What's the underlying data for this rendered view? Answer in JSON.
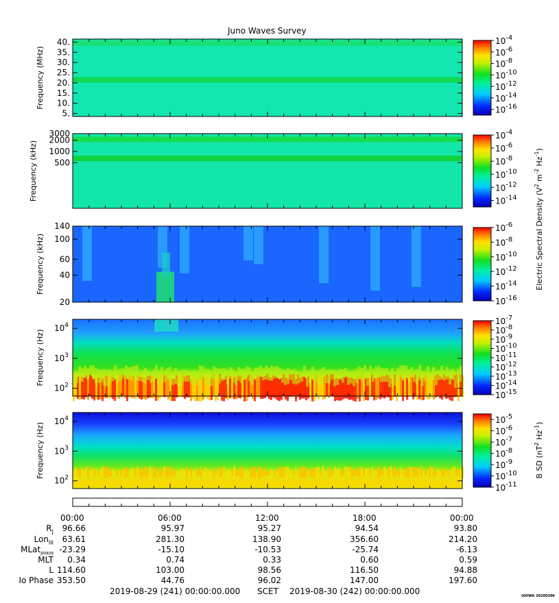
{
  "title": "Juno Waves Survey",
  "chart_data": [
    {
      "type": "heatmap",
      "ylabel": "Frequency (MHz)",
      "yticks": [
        "40.",
        "35.",
        "30.",
        "25.",
        "20.",
        "15.",
        "10.",
        "5."
      ],
      "ytick_values": [
        40,
        35,
        30,
        25,
        20,
        15,
        10,
        5
      ],
      "ylim": [
        3.5,
        41.5
      ],
      "yscale": "linear",
      "colorbar": {
        "exponents": [
          "-4",
          "-6",
          "-8",
          "-10",
          "-12",
          "-14",
          "-16"
        ],
        "range": [
          -17,
          -4
        ]
      },
      "bands": [
        {
          "y": 21.5,
          "color": "#10d848"
        },
        {
          "y": 39.5,
          "color": "#18e070"
        }
      ],
      "background": "#12e7b0"
    },
    {
      "type": "heatmap",
      "ylabel": "Frequency (kHz)",
      "yticks": [
        "3000",
        "2000",
        "1000",
        "500"
      ],
      "ytick_values": [
        3000,
        2000,
        1000,
        500
      ],
      "ylim": [
        30,
        3000
      ],
      "yscale": "log",
      "colorbar": {
        "exponents": [
          "-4",
          "-6",
          "-8",
          "-10",
          "-12",
          "-14"
        ],
        "range": [
          -15,
          -4
        ]
      },
      "bands": [
        {
          "y": 2100,
          "color": "#16dc48"
        },
        {
          "y": 650,
          "color": "#10d030"
        }
      ],
      "background": "#12e6a8"
    },
    {
      "type": "heatmap",
      "ylabel": "Frequency (kHz)",
      "yticks": [
        "140",
        "100",
        "60",
        "40",
        "20"
      ],
      "ytick_values": [
        140,
        100,
        60,
        40,
        20
      ],
      "ylim": [
        20,
        140
      ],
      "yscale": "log",
      "colorbar": {
        "exponents": [
          "-6",
          "-8",
          "-10",
          "-12",
          "-14",
          "-16"
        ],
        "range": [
          -16,
          -6
        ]
      },
      "background": "#1a66ff"
    },
    {
      "type": "heatmap",
      "ylabel": "Frequency (Hz)",
      "yticks": [
        {
          "base": "10",
          "exp": "4"
        },
        {
          "base": "10",
          "exp": "3"
        },
        {
          "base": "10",
          "exp": "2"
        }
      ],
      "ytick_values": [
        10000,
        1000,
        100
      ],
      "ylim": [
        55,
        20000
      ],
      "yscale": "log",
      "colorbar": {
        "exponents": [
          "-7",
          "-8",
          "-9",
          "-10",
          "-11",
          "-12",
          "-13",
          "-14",
          "-15"
        ],
        "range": [
          -15,
          -7
        ]
      },
      "background": "#1a66ff"
    },
    {
      "type": "heatmap",
      "ylabel": "Frequency (Hz)",
      "yticks": [
        {
          "base": "10",
          "exp": "4"
        },
        {
          "base": "10",
          "exp": "3"
        },
        {
          "base": "10",
          "exp": "2"
        }
      ],
      "ytick_values": [
        10000,
        1000,
        100
      ],
      "ylim": [
        55,
        20000
      ],
      "yscale": "log",
      "colorbar": {
        "exponents": [
          "-5",
          "-6",
          "-7",
          "-8",
          "-9",
          "-10",
          "-11"
        ],
        "range": [
          -11,
          -4.5
        ]
      },
      "background": "#1a66ff"
    }
  ],
  "colorbar_labels": {
    "electric_parts": [
      "Electric Spectral Density (V",
      "2",
      " m",
      "-2",
      " Hz",
      "-1",
      ")"
    ],
    "magnetic_parts": [
      "B SD (nT",
      "2",
      " Hz",
      "-1",
      ")"
    ]
  },
  "x_axis": {
    "ticks": [
      "00:00",
      "06:00",
      "12:00",
      "18:00",
      "00:00"
    ],
    "tick_hours": [
      0,
      6,
      12,
      18,
      24
    ],
    "minor_hours": [
      1,
      2,
      3,
      4,
      5,
      7,
      8,
      9,
      10,
      11,
      13,
      14,
      15,
      16,
      17,
      19,
      20,
      21,
      22,
      23
    ],
    "range_hours": [
      0,
      24
    ]
  },
  "ephemeris": {
    "rows": [
      {
        "label": "R",
        "sub": "J",
        "values": [
          "96.66",
          "95.97",
          "95.27",
          "94.54",
          "93.80"
        ]
      },
      {
        "label": "Lon",
        "sub": "III",
        "values": [
          "63.61",
          "281.30",
          "138.90",
          "356.60",
          "214.20"
        ]
      },
      {
        "label": "MLat",
        "sub": "JRM09",
        "values": [
          "-23.29",
          "-15.10",
          "-10.53",
          "-25.74",
          "-6.13"
        ]
      },
      {
        "label": "MLT",
        "sub": "",
        "values": [
          "0.34",
          "0.74",
          "0.33",
          "0.60",
          "0.59"
        ]
      },
      {
        "label": "L",
        "sub": "",
        "values": [
          "114.60",
          "103.00",
          "98.56",
          "116.50",
          "94.88"
        ]
      },
      {
        "label": "Io Phase",
        "sub": "",
        "values": [
          "353.50",
          "44.76",
          "96.02",
          "147.00",
          "197.60"
        ]
      }
    ]
  },
  "footer": {
    "start": "2019-08-29 (241) 00:00:00.000",
    "scet": "SCET",
    "end": "2019-08-30 (242) 00:00:00.000",
    "credit": "UIOWA 20200306"
  }
}
